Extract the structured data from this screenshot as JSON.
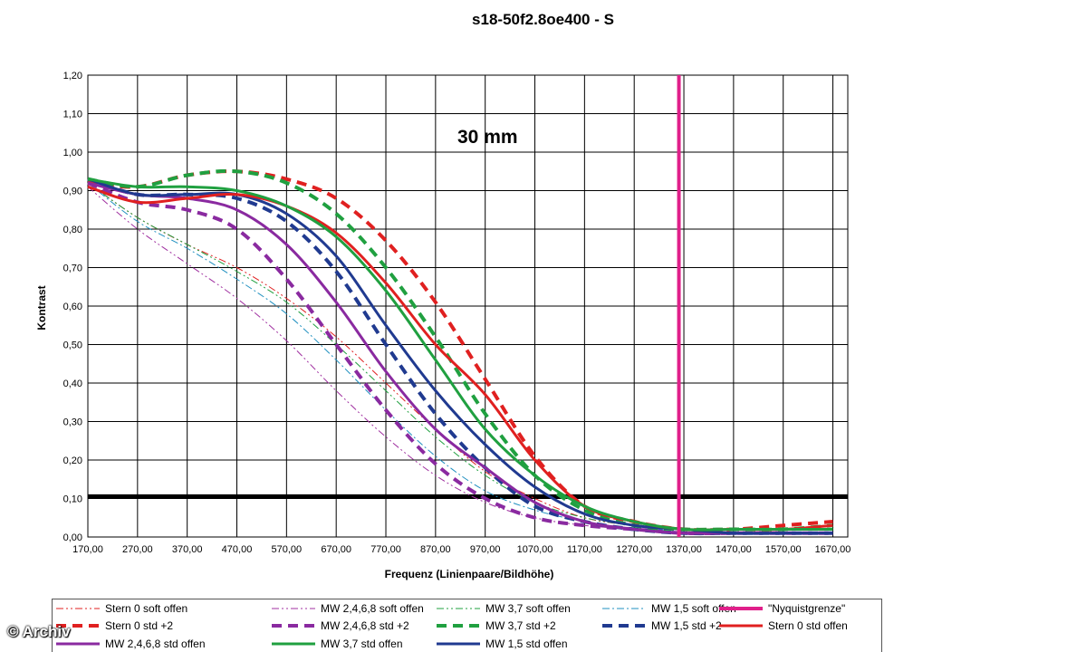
{
  "chart_data": {
    "type": "line",
    "title": "s18-50f2.8oe400 - S",
    "annotation": "30 mm",
    "xlabel": "Frequenz (Linienpaare/Bildhöhe)",
    "ylabel": "Kontrast",
    "xlim": [
      170,
      1700
    ],
    "ylim": [
      0,
      1.2
    ],
    "grid": true,
    "legend_position": "bottom",
    "x_ticks": [
      "170,00",
      "270,00",
      "370,00",
      "470,00",
      "570,00",
      "670,00",
      "770,00",
      "870,00",
      "970,00",
      "1070,00",
      "1170,00",
      "1270,00",
      "1370,00",
      "1470,00",
      "1570,00",
      "1670,00"
    ],
    "y_ticks": [
      "0,00",
      "0,10",
      "0,20",
      "0,30",
      "0,40",
      "0,50",
      "0,60",
      "0,70",
      "0,80",
      "0,90",
      "1,00",
      "1,10",
      "1,20"
    ],
    "threshold": {
      "y": 0.105,
      "color": "#000000"
    },
    "series": [
      {
        "name": "Stern 0 soft offen",
        "color": "#e02020",
        "style": "dashdotdot",
        "width": 1,
        "x": [
          170,
          270,
          370,
          470,
          570,
          670,
          770,
          870,
          970,
          1070,
          1170,
          1270,
          1370,
          1470,
          1570,
          1670
        ],
        "y": [
          0.92,
          0.83,
          0.76,
          0.7,
          0.62,
          0.52,
          0.4,
          0.28,
          0.17,
          0.1,
          0.05,
          0.03,
          0.02,
          0.02,
          0.02,
          0.02
        ]
      },
      {
        "name": "MW 2,4,6,8 soft offen",
        "color": "#a030a0",
        "style": "dashdotdot",
        "width": 1,
        "x": [
          170,
          270,
          370,
          470,
          570,
          670,
          770,
          870,
          970,
          1070,
          1170,
          1270,
          1370,
          1470,
          1570,
          1670
        ],
        "y": [
          0.91,
          0.8,
          0.71,
          0.62,
          0.51,
          0.38,
          0.26,
          0.16,
          0.09,
          0.05,
          0.03,
          0.02,
          0.01,
          0.01,
          0.01,
          0.01
        ]
      },
      {
        "name": "MW 3,7 soft offen",
        "color": "#20a040",
        "style": "dashdotdot",
        "width": 1,
        "x": [
          170,
          270,
          370,
          470,
          570,
          670,
          770,
          870,
          970,
          1070,
          1170,
          1270,
          1370,
          1470,
          1570,
          1670
        ],
        "y": [
          0.92,
          0.83,
          0.76,
          0.69,
          0.61,
          0.5,
          0.38,
          0.26,
          0.16,
          0.09,
          0.05,
          0.03,
          0.02,
          0.02,
          0.02,
          0.02
        ]
      },
      {
        "name": "MW 1,5 soft offen",
        "color": "#2090c0",
        "style": "dashdot",
        "width": 1,
        "x": [
          170,
          270,
          370,
          470,
          570,
          670,
          770,
          870,
          970,
          1070,
          1170,
          1270,
          1370,
          1470,
          1570,
          1670
        ],
        "y": [
          0.92,
          0.82,
          0.75,
          0.67,
          0.58,
          0.46,
          0.33,
          0.21,
          0.12,
          0.07,
          0.04,
          0.02,
          0.02,
          0.01,
          0.01,
          0.01
        ]
      },
      {
        "name": "\"Nyquistgrenze\"",
        "color": "#e0208a",
        "style": "solid",
        "width": 4,
        "vertical": true,
        "x": [
          1360,
          1360
        ],
        "y": [
          0,
          1.2
        ]
      },
      {
        "name": "Stern 0 std +2",
        "color": "#e02020",
        "style": "dash",
        "width": 4,
        "x": [
          170,
          270,
          370,
          470,
          570,
          670,
          770,
          870,
          970,
          1070,
          1170,
          1270,
          1370,
          1470,
          1570,
          1670
        ],
        "y": [
          0.92,
          0.91,
          0.94,
          0.95,
          0.93,
          0.88,
          0.77,
          0.61,
          0.41,
          0.21,
          0.08,
          0.04,
          0.02,
          0.02,
          0.03,
          0.04
        ]
      },
      {
        "name": "MW 2,4,6,8 std +2",
        "color": "#8a2aa0",
        "style": "dash",
        "width": 4,
        "x": [
          170,
          270,
          370,
          470,
          570,
          670,
          770,
          870,
          970,
          1070,
          1170,
          1270,
          1370,
          1470,
          1570,
          1670
        ],
        "y": [
          0.92,
          0.87,
          0.85,
          0.8,
          0.67,
          0.5,
          0.33,
          0.19,
          0.1,
          0.05,
          0.03,
          0.02,
          0.01,
          0.01,
          0.01,
          0.01
        ]
      },
      {
        "name": "MW 3,7 std +2",
        "color": "#20a040",
        "style": "dash",
        "width": 4,
        "x": [
          170,
          270,
          370,
          470,
          570,
          670,
          770,
          870,
          970,
          1070,
          1170,
          1270,
          1370,
          1470,
          1570,
          1670
        ],
        "y": [
          0.93,
          0.91,
          0.94,
          0.95,
          0.92,
          0.84,
          0.7,
          0.52,
          0.32,
          0.16,
          0.07,
          0.03,
          0.02,
          0.02,
          0.02,
          0.03
        ]
      },
      {
        "name": "MW 1,5 std +2",
        "color": "#203a90",
        "style": "dash",
        "width": 4,
        "x": [
          170,
          270,
          370,
          470,
          570,
          670,
          770,
          870,
          970,
          1070,
          1170,
          1270,
          1370,
          1470,
          1570,
          1670
        ],
        "y": [
          0.93,
          0.89,
          0.89,
          0.88,
          0.82,
          0.69,
          0.5,
          0.32,
          0.18,
          0.08,
          0.04,
          0.02,
          0.01,
          0.01,
          0.01,
          0.01
        ]
      },
      {
        "name": "Stern 0 std offen",
        "color": "#e02020",
        "style": "solid",
        "width": 3,
        "x": [
          170,
          270,
          370,
          470,
          570,
          670,
          770,
          870,
          970,
          1070,
          1170,
          1270,
          1370,
          1470,
          1570,
          1670
        ],
        "y": [
          0.91,
          0.87,
          0.88,
          0.89,
          0.86,
          0.79,
          0.66,
          0.5,
          0.37,
          0.2,
          0.08,
          0.04,
          0.02,
          0.02,
          0.02,
          0.03
        ]
      },
      {
        "name": "MW 2,4,6,8 std offen",
        "color": "#8a2aa0",
        "style": "solid",
        "width": 3,
        "x": [
          170,
          270,
          370,
          470,
          570,
          670,
          770,
          870,
          970,
          1070,
          1170,
          1270,
          1370,
          1470,
          1570,
          1670
        ],
        "y": [
          0.92,
          0.89,
          0.88,
          0.85,
          0.76,
          0.61,
          0.43,
          0.28,
          0.18,
          0.09,
          0.04,
          0.02,
          0.01,
          0.01,
          0.01,
          0.01
        ]
      },
      {
        "name": "MW 3,7 std offen",
        "color": "#20a040",
        "style": "solid",
        "width": 3,
        "x": [
          170,
          270,
          370,
          470,
          570,
          670,
          770,
          870,
          970,
          1070,
          1170,
          1270,
          1370,
          1470,
          1570,
          1670
        ],
        "y": [
          0.93,
          0.91,
          0.91,
          0.9,
          0.86,
          0.78,
          0.64,
          0.46,
          0.28,
          0.16,
          0.08,
          0.04,
          0.02,
          0.02,
          0.02,
          0.02
        ]
      },
      {
        "name": "MW 1,5 std offen",
        "color": "#203a90",
        "style": "solid",
        "width": 3,
        "x": [
          170,
          270,
          370,
          470,
          570,
          670,
          770,
          870,
          970,
          1070,
          1170,
          1270,
          1370,
          1470,
          1570,
          1670
        ],
        "y": [
          0.93,
          0.89,
          0.89,
          0.89,
          0.84,
          0.73,
          0.55,
          0.38,
          0.24,
          0.13,
          0.06,
          0.03,
          0.02,
          0.01,
          0.01,
          0.01
        ]
      }
    ]
  },
  "watermark": "© Archiv"
}
